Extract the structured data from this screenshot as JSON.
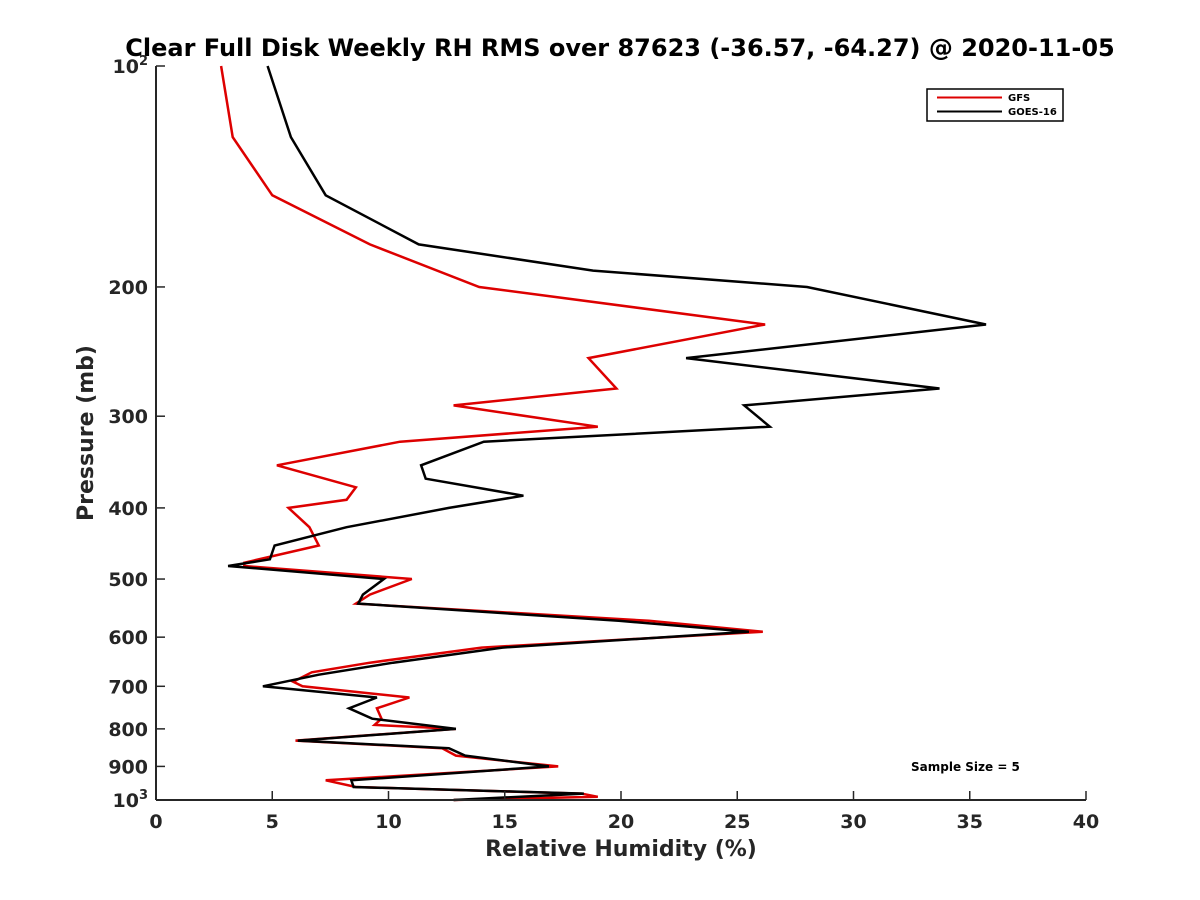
{
  "chart_data": {
    "type": "line",
    "title": "Clear Full Disk Weekly RH RMS over 87623 (-36.57, -64.27) @ 2020-11-05",
    "xlabel": "Relative Humidity (%)",
    "ylabel": "Pressure (mb)",
    "xlim": [
      0,
      40
    ],
    "ylim": [
      100,
      1000
    ],
    "y_scale": "log",
    "y_reversed": true,
    "grid": false,
    "legend_position": "top-right",
    "annotation": "Sample Size = 5",
    "x_ticks": [
      "0",
      "5",
      "10",
      "15",
      "20",
      "25",
      "30",
      "35",
      "40"
    ],
    "y_ticks": [
      {
        "value": 100,
        "base": "10",
        "exp": "2"
      },
      {
        "value": 200,
        "label": "200"
      },
      {
        "value": 300,
        "label": "300"
      },
      {
        "value": 400,
        "label": "400"
      },
      {
        "value": 500,
        "label": "500"
      },
      {
        "value": 600,
        "label": "600"
      },
      {
        "value": 700,
        "label": "700"
      },
      {
        "value": 800,
        "label": "800"
      },
      {
        "value": 900,
        "label": "900"
      },
      {
        "value": 1000,
        "base": "10",
        "exp": "3"
      }
    ],
    "series": [
      {
        "name": "GFS",
        "color": "#dd0000",
        "points": [
          [
            2.8,
            100
          ],
          [
            3.3,
            125
          ],
          [
            5.0,
            150
          ],
          [
            9.2,
            175
          ],
          [
            13.9,
            200
          ],
          [
            26.2,
            225
          ],
          [
            18.6,
            250
          ],
          [
            19.8,
            275
          ],
          [
            12.8,
            290
          ],
          [
            19.0,
            310
          ],
          [
            10.5,
            325
          ],
          [
            5.2,
            350
          ],
          [
            8.6,
            375
          ],
          [
            8.2,
            390
          ],
          [
            5.7,
            400
          ],
          [
            6.6,
            425
          ],
          [
            7.0,
            450
          ],
          [
            3.8,
            475
          ],
          [
            3.8,
            480
          ],
          [
            11.0,
            500
          ],
          [
            9.2,
            525
          ],
          [
            8.6,
            540
          ],
          [
            21.2,
            570
          ],
          [
            26.1,
            590
          ],
          [
            14.0,
            620
          ],
          [
            9.2,
            650
          ],
          [
            6.7,
            670
          ],
          [
            5.9,
            690
          ],
          [
            6.3,
            700
          ],
          [
            10.9,
            725
          ],
          [
            9.5,
            750
          ],
          [
            9.7,
            775
          ],
          [
            9.4,
            790
          ],
          [
            12.9,
            800
          ],
          [
            6.0,
            830
          ],
          [
            12.3,
            850
          ],
          [
            12.9,
            870
          ],
          [
            17.3,
            900
          ],
          [
            7.3,
            940
          ],
          [
            8.6,
            960
          ],
          [
            18.3,
            980
          ],
          [
            19.0,
            990
          ],
          [
            12.8,
            1000
          ]
        ]
      },
      {
        "name": "GOES-16",
        "color": "#000000",
        "points": [
          [
            4.8,
            100
          ],
          [
            5.8,
            125
          ],
          [
            7.3,
            150
          ],
          [
            11.3,
            175
          ],
          [
            18.8,
            190
          ],
          [
            28.0,
            200
          ],
          [
            35.7,
            225
          ],
          [
            22.8,
            250
          ],
          [
            33.7,
            275
          ],
          [
            25.3,
            290
          ],
          [
            26.4,
            310
          ],
          [
            14.1,
            325
          ],
          [
            11.4,
            350
          ],
          [
            11.6,
            365
          ],
          [
            15.8,
            385
          ],
          [
            12.6,
            400
          ],
          [
            8.2,
            425
          ],
          [
            5.1,
            450
          ],
          [
            4.9,
            470
          ],
          [
            3.1,
            480
          ],
          [
            9.8,
            500
          ],
          [
            8.9,
            525
          ],
          [
            8.7,
            540
          ],
          [
            19.9,
            570
          ],
          [
            25.5,
            590
          ],
          [
            14.9,
            620
          ],
          [
            10.2,
            650
          ],
          [
            7.0,
            675
          ],
          [
            4.6,
            700
          ],
          [
            9.5,
            725
          ],
          [
            8.3,
            750
          ],
          [
            9.3,
            775
          ],
          [
            12.9,
            800
          ],
          [
            6.1,
            830
          ],
          [
            12.6,
            850
          ],
          [
            13.3,
            870
          ],
          [
            16.9,
            900
          ],
          [
            8.4,
            940
          ],
          [
            8.5,
            960
          ],
          [
            18.4,
            980
          ],
          [
            12.8,
            1000
          ]
        ]
      }
    ]
  }
}
